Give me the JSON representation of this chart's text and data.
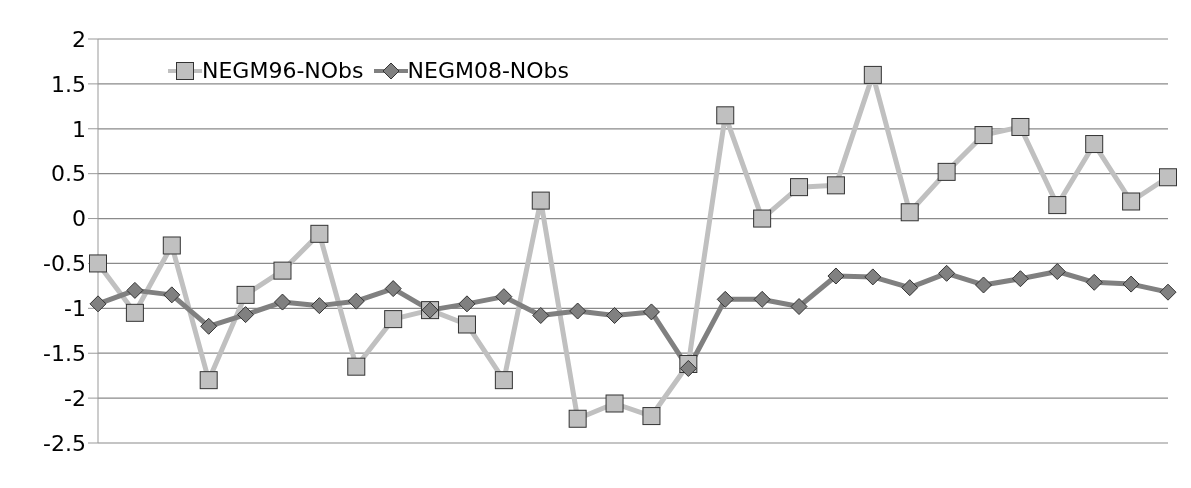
{
  "chart_data": {
    "type": "line",
    "categories": [
      null,
      null,
      null,
      null,
      null,
      null,
      null,
      null,
      null,
      null,
      null,
      null,
      null,
      null,
      null,
      null,
      null,
      null,
      null,
      null,
      null,
      null,
      null,
      null,
      null,
      null,
      null,
      null,
      null,
      null
    ],
    "series": [
      {
        "name": "NEGM96-NObs",
        "color": "#c0c0c0",
        "marker": "square",
        "values": [
          -0.5,
          -1.05,
          -0.3,
          -1.8,
          -0.85,
          -0.58,
          -0.17,
          -1.65,
          -1.12,
          -1.02,
          -1.18,
          -1.8,
          0.2,
          -2.23,
          -2.06,
          -2.2,
          -1.62,
          1.15,
          0.0,
          0.35,
          0.37,
          1.6,
          0.07,
          0.52,
          0.93,
          1.02,
          0.15,
          0.83,
          0.19,
          0.46
        ]
      },
      {
        "name": "NEGM08-NObs",
        "color": "#808080",
        "marker": "diamond",
        "values": [
          -0.95,
          -0.8,
          -0.85,
          -1.2,
          -1.07,
          -0.93,
          -0.97,
          -0.92,
          -0.78,
          -1.02,
          -0.95,
          -0.87,
          -1.08,
          -1.03,
          -1.08,
          -1.04,
          -1.67,
          -0.9,
          -0.9,
          -0.98,
          -0.64,
          -0.65,
          -0.77,
          -0.61,
          -0.74,
          -0.67,
          -0.59,
          -0.71,
          -0.73,
          -0.82
        ]
      }
    ],
    "ylim": [
      -2.5,
      2
    ],
    "yticks": [
      -2.5,
      -2,
      -1.5,
      -1,
      -0.5,
      0,
      0.5,
      1,
      1.5,
      2
    ],
    "grid": "y",
    "legend": "top left",
    "tick_labels": "y",
    "line_style": "solid"
  }
}
